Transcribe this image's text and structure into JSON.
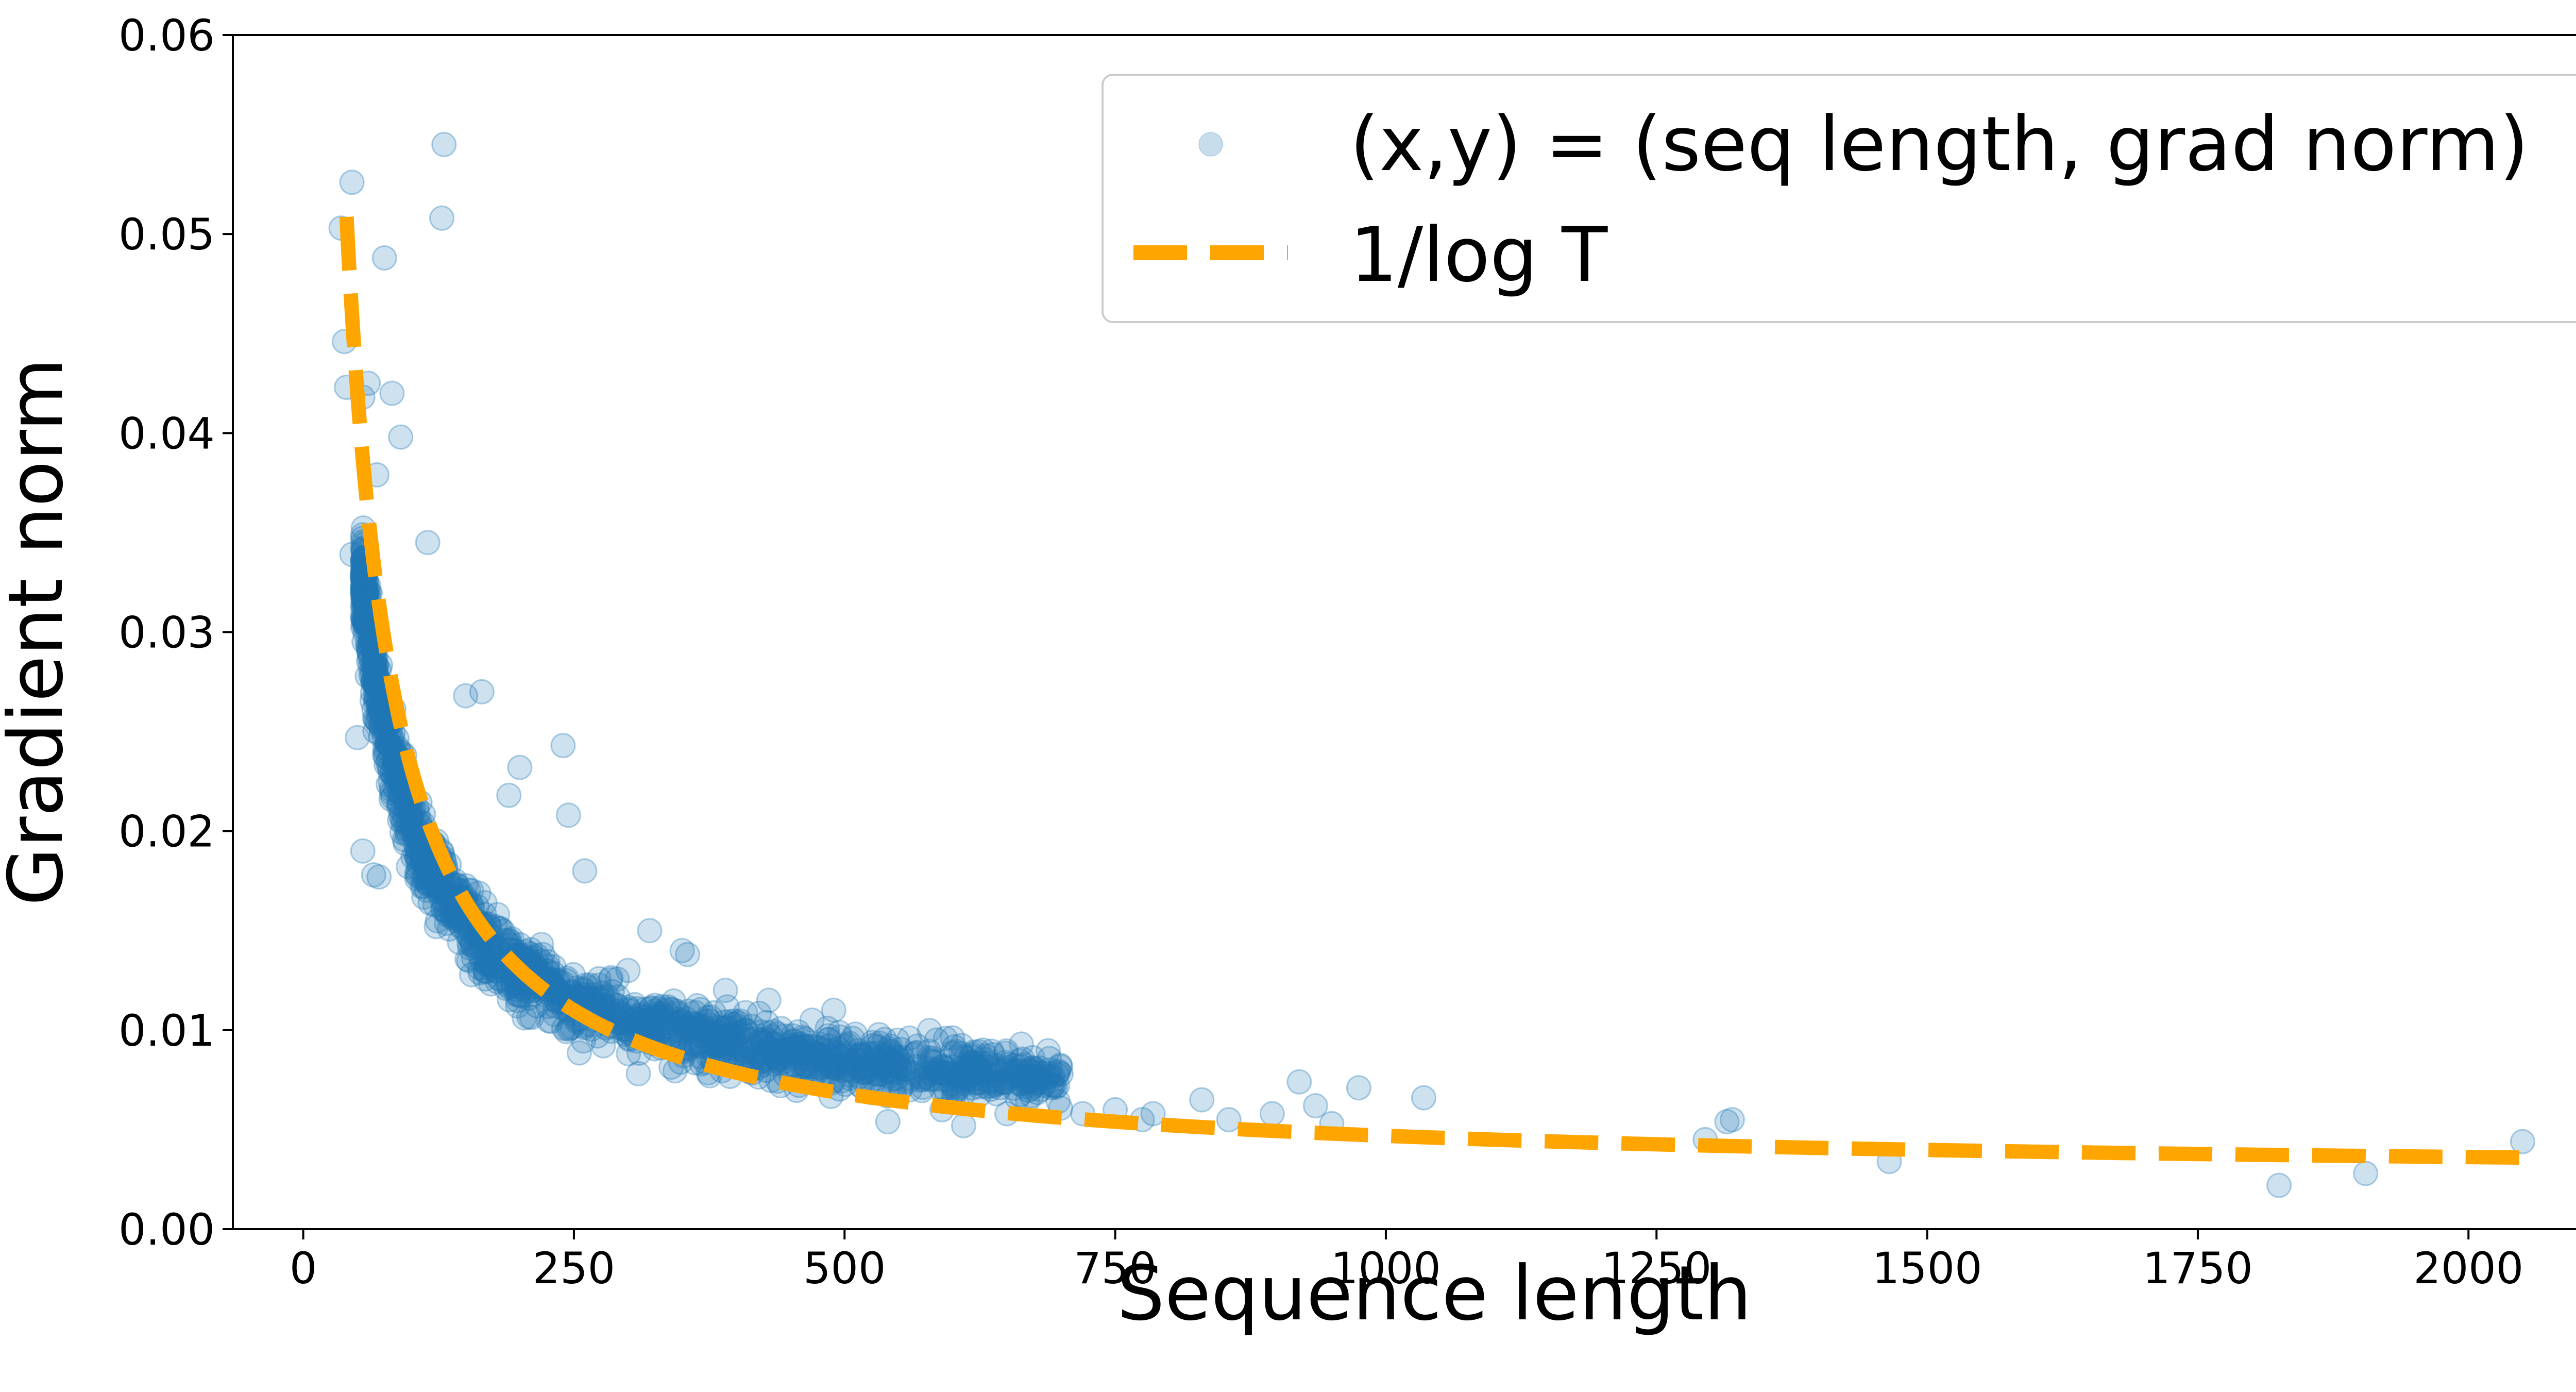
{
  "chart_data": {
    "type": "scatter",
    "title": "",
    "xlabel": "Sequence length",
    "ylabel": "Gradient norm",
    "xlim": [
      -65,
      2155
    ],
    "ylim": [
      0,
      0.06
    ],
    "xticks": [
      0,
      250,
      500,
      750,
      1000,
      1250,
      1500,
      1750,
      2000
    ],
    "xtick_labels": [
      "0",
      "250",
      "500",
      "750",
      "1000",
      "1250",
      "1500",
      "1750",
      "2000"
    ],
    "yticks": [
      0.0,
      0.01,
      0.02,
      0.03,
      0.04,
      0.05,
      0.06
    ],
    "ytick_labels": [
      "0.00",
      "0.01",
      "0.02",
      "0.03",
      "0.04",
      "0.05",
      "0.06"
    ],
    "grid": false,
    "legend_position": "top-right",
    "legend": {
      "scatter_label": "(x,y) = (seq length, grad norm)",
      "curve_label": "1/log T"
    },
    "colors": {
      "scatter": "#1f77b4",
      "curve": "#ffa500"
    },
    "series": [
      {
        "name": "(x,y) = (seq length, grad norm)",
        "kind": "scatter",
        "points": [
          [
            35,
            0.0503
          ],
          [
            38,
            0.0446
          ],
          [
            40,
            0.0423
          ],
          [
            45,
            0.0526
          ],
          [
            55,
            0.0418
          ],
          [
            60,
            0.0425
          ],
          [
            68,
            0.0379
          ],
          [
            75,
            0.0488
          ],
          [
            82,
            0.042
          ],
          [
            90,
            0.0398
          ],
          [
            130,
            0.0545
          ],
          [
            128,
            0.0508
          ],
          [
            115,
            0.0345
          ],
          [
            45,
            0.0339
          ],
          [
            50,
            0.0247
          ],
          [
            55,
            0.019
          ],
          [
            65,
            0.0178
          ],
          [
            70,
            0.0177
          ],
          [
            150,
            0.0268
          ],
          [
            165,
            0.027
          ],
          [
            190,
            0.0218
          ],
          [
            200,
            0.0232
          ],
          [
            240,
            0.0243
          ],
          [
            245,
            0.0208
          ],
          [
            260,
            0.018
          ],
          [
            300,
            0.013
          ],
          [
            320,
            0.015
          ],
          [
            350,
            0.014
          ],
          [
            355,
            0.0138
          ],
          [
            390,
            0.012
          ],
          [
            430,
            0.0115
          ],
          [
            470,
            0.0105
          ],
          [
            490,
            0.011
          ],
          [
            510,
            0.0098
          ],
          [
            540,
            0.0054
          ],
          [
            560,
            0.0096
          ],
          [
            590,
            0.006
          ],
          [
            610,
            0.0052
          ],
          [
            650,
            0.0058
          ],
          [
            680,
            0.0081
          ],
          [
            700,
            0.0078
          ],
          [
            720,
            0.0058
          ],
          [
            750,
            0.006
          ],
          [
            775,
            0.0055
          ],
          [
            785,
            0.0058
          ],
          [
            830,
            0.0065
          ],
          [
            855,
            0.0055
          ],
          [
            895,
            0.0058
          ],
          [
            920,
            0.0074
          ],
          [
            935,
            0.0062
          ],
          [
            950,
            0.0053
          ],
          [
            975,
            0.0071
          ],
          [
            1035,
            0.0066
          ],
          [
            1295,
            0.0045
          ],
          [
            1315,
            0.0054
          ],
          [
            1320,
            0.0055
          ],
          [
            1465,
            0.0034
          ],
          [
            1825,
            0.0022
          ],
          [
            1905,
            0.0028
          ],
          [
            2050,
            0.0044
          ]
        ],
        "density_band": {
          "description": "dense cluster following the trend",
          "x_range": [
            55,
            700
          ],
          "y_center_fn": "0.0055 + 1.5 / x",
          "y_spread": 0.0028,
          "count": 1600
        }
      },
      {
        "name": "1/log T",
        "kind": "line",
        "style": "dashed",
        "x_range": [
          40,
          2050
        ],
        "formula": "y = 0.0048 + (0.82 / x) ... approximate 1/log T curve as drawn"
      }
    ]
  }
}
